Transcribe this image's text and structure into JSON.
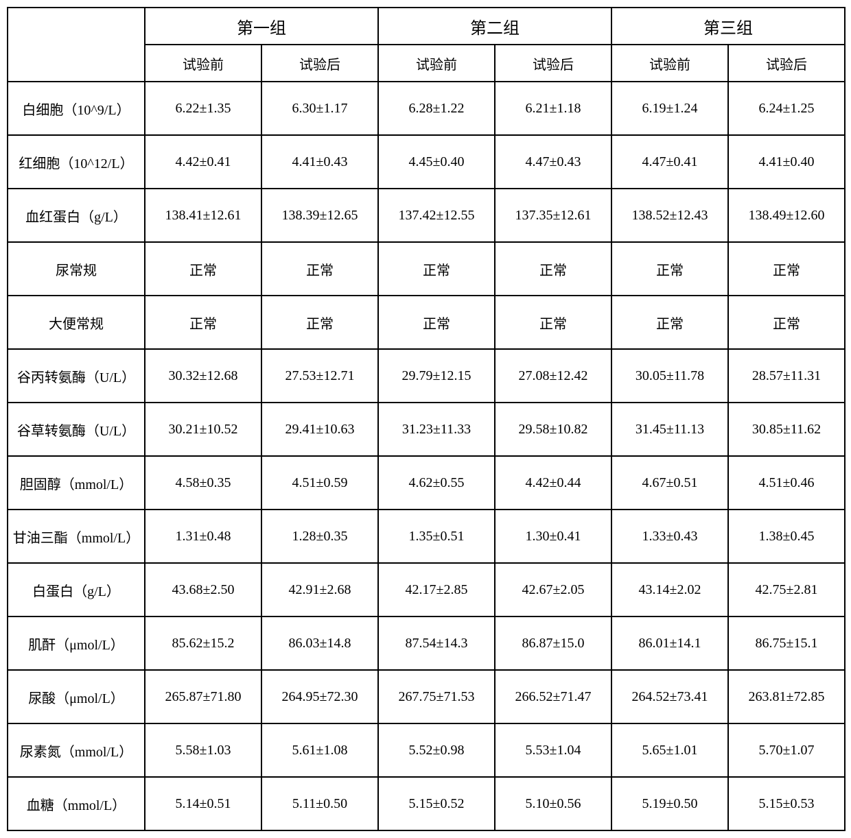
{
  "table": {
    "font_family": "SimSun",
    "border_color": "#000000",
    "background": "#ffffff",
    "group_headers": [
      "第一组",
      "第二组",
      "第三组"
    ],
    "sub_headers": [
      "试验前",
      "试验后"
    ],
    "group_header_fontsize": 24,
    "sub_header_fontsize": 20,
    "cell_fontsize": 20,
    "row_labels": [
      "白细胞（10^9/L）",
      "红细胞（10^12/L）",
      "血红蛋白（g/L）",
      "尿常规",
      "大便常规",
      "谷丙转氨酶（U/L）",
      "谷草转氨酶（U/L）",
      "胆固醇（mmol/L）",
      "甘油三酯（mmol/L）",
      "白蛋白（g/L）",
      "肌酐（μmol/L）",
      "尿酸（μmol/L）",
      "尿素氮（mmol/L）",
      "血糖（mmol/L）"
    ],
    "rows": [
      [
        "6.22±1.35",
        "6.30±1.17",
        "6.28±1.22",
        "6.21±1.18",
        "6.19±1.24",
        "6.24±1.25"
      ],
      [
        "4.42±0.41",
        "4.41±0.43",
        "4.45±0.40",
        "4.47±0.43",
        "4.47±0.41",
        "4.41±0.40"
      ],
      [
        "138.41±12.61",
        "138.39±12.65",
        "137.42±12.55",
        "137.35±12.61",
        "138.52±12.43",
        "138.49±12.60"
      ],
      [
        "正常",
        "正常",
        "正常",
        "正常",
        "正常",
        "正常"
      ],
      [
        "正常",
        "正常",
        "正常",
        "正常",
        "正常",
        "正常"
      ],
      [
        "30.32±12.68",
        "27.53±12.71",
        "29.79±12.15",
        "27.08±12.42",
        "30.05±11.78",
        "28.57±11.31"
      ],
      [
        "30.21±10.52",
        "29.41±10.63",
        "31.23±11.33",
        "29.58±10.82",
        "31.45±11.13",
        "30.85±11.62"
      ],
      [
        "4.58±0.35",
        "4.51±0.59",
        "4.62±0.55",
        "4.42±0.44",
        "4.67±0.51",
        "4.51±0.46"
      ],
      [
        "1.31±0.48",
        "1.28±0.35",
        "1.35±0.51",
        "1.30±0.41",
        "1.33±0.43",
        "1.38±0.45"
      ],
      [
        "43.68±2.50",
        "42.91±2.68",
        "42.17±2.85",
        "42.67±2.05",
        "43.14±2.02",
        "42.75±2.81"
      ],
      [
        "85.62±15.2",
        "86.03±14.8",
        "87.54±14.3",
        "86.87±15.0",
        "86.01±14.1",
        "86.75±15.1"
      ],
      [
        "265.87±71.80",
        "264.95±72.30",
        "267.75±71.53",
        "266.52±71.47",
        "264.52±73.41",
        "263.81±72.85"
      ],
      [
        "5.58±1.03",
        "5.61±1.08",
        "5.52±0.98",
        "5.53±1.04",
        "5.65±1.01",
        "5.70±1.07"
      ],
      [
        "5.14±0.51",
        "5.11±0.50",
        "5.15±0.52",
        "5.10±0.56",
        "5.19±0.50",
        "5.15±0.53"
      ]
    ]
  }
}
